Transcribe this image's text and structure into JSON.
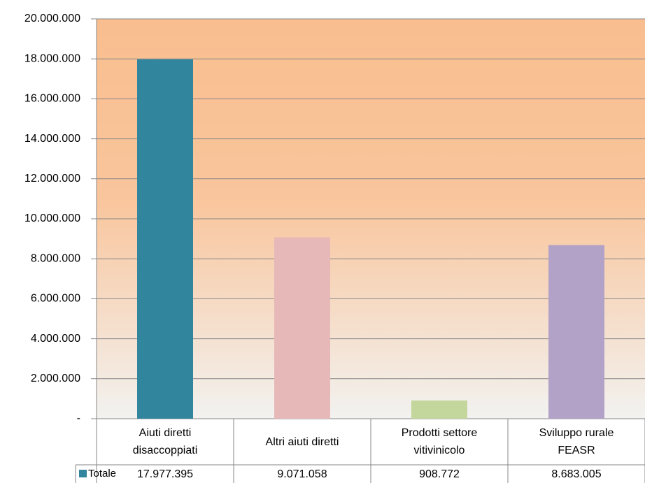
{
  "chart_data": {
    "type": "bar",
    "categories": [
      "Aiuti diretti\ndisaccoppiati",
      "Altri aiuti diretti",
      "Prodotti settore\nvitivinicolo",
      "Sviluppo rurale\nFEASR"
    ],
    "series": [
      {
        "name": "Totale",
        "colors": [
          "#31859c",
          "#e6b9b8",
          "#c3d69b",
          "#b3a2c7"
        ],
        "values": [
          17977395,
          9071058,
          908772,
          8683005
        ],
        "value_labels": [
          "17.977.395",
          "9.071.058",
          "908.772",
          "8.683.005"
        ]
      }
    ],
    "ylim": [
      0,
      20000000
    ],
    "yticks": [
      {
        "value": 0,
        "label": "-"
      },
      {
        "value": 2000000,
        "label": "2.000.000"
      },
      {
        "value": 4000000,
        "label": "4.000.000"
      },
      {
        "value": 6000000,
        "label": "6.000.000"
      },
      {
        "value": 8000000,
        "label": "8.000.000"
      },
      {
        "value": 10000000,
        "label": "10.000.000"
      },
      {
        "value": 12000000,
        "label": "12.000.000"
      },
      {
        "value": 14000000,
        "label": "14.000.000"
      },
      {
        "value": 16000000,
        "label": "16.000.000"
      },
      {
        "value": 18000000,
        "label": "18.000.000"
      },
      {
        "value": 20000000,
        "label": "20.000.000"
      }
    ],
    "grid": true
  }
}
